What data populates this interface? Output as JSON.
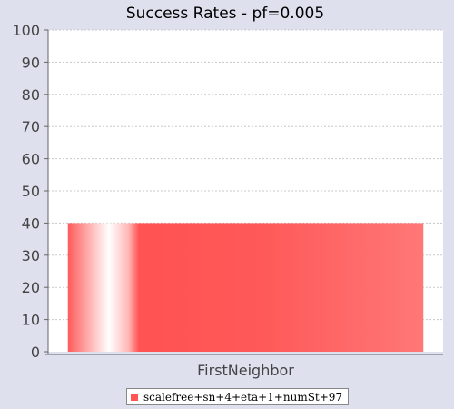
{
  "chart_data": {
    "type": "bar",
    "title": "Success Rates - pf=0.005",
    "categories": [
      "FirstNeighbor"
    ],
    "series": [
      {
        "name": "scalefree+sn+4+eta+1+numSt+97",
        "values": [
          40
        ],
        "color": "#ff5555"
      }
    ],
    "ylim": [
      0,
      100
    ],
    "yticks": [
      0,
      10,
      20,
      30,
      40,
      50,
      60,
      70,
      80,
      90,
      100
    ],
    "grid": true,
    "legend_position": "bottom-center"
  }
}
